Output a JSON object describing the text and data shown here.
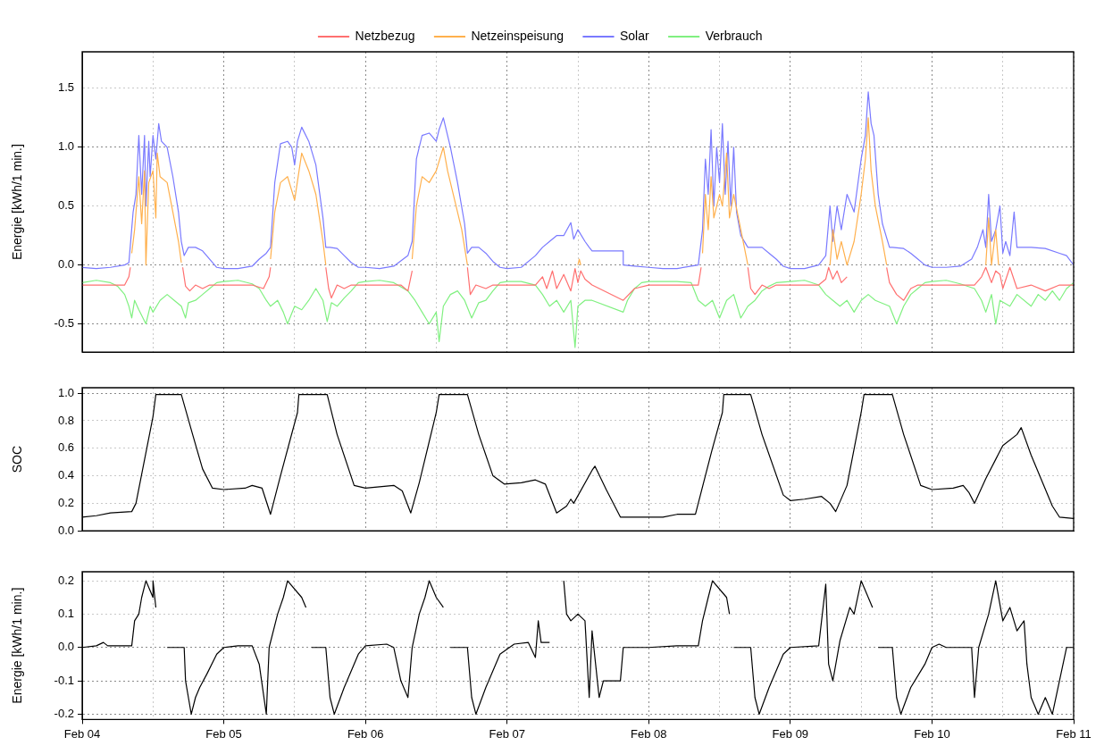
{
  "chart_data": [
    {
      "type": "line",
      "ylabel": "Energie [kWh/1 min.]",
      "legend": "top",
      "grid": true,
      "tick_labels": "y",
      "marker": "none",
      "line_style": "solid",
      "xlim": [
        "--02-04",
        "--02-11"
      ],
      "xticks": [
        "--02-04",
        "--02-04T12:00",
        "--02-05",
        "--02-05T12:00",
        "--02-06",
        "--02-06T12:00",
        "--02-07",
        "--02-07T12:00",
        "--02-08",
        "--02-08T12:00",
        "--02-09",
        "--02-09T12:00",
        "--02-10",
        "--02-10T12:00",
        "--02-11"
      ],
      "ylim": [
        -0.74,
        1.81
      ],
      "yticks": [
        {
          "value": -0.5,
          "label": "-0.5"
        },
        {
          "value": 0,
          "label": "0.0"
        },
        0.5,
        {
          "value": 1,
          "label": "1.0"
        },
        1.5
      ],
      "series": [
        {
          "name": "Netzbezug",
          "color": "#ff7070",
          "x": [
            "--02-04T00:00",
            "--02-04T07:12",
            "--02-04T07:55",
            "--02-04T08:10",
            "--02-04T08:24",
            "--02-04T17:02",
            "--02-04T17:31",
            "--02-04T18:14",
            "--02-04T19:12",
            "--02-04T20:24",
            "--02-04T21:36",
            "--02-05T04:48",
            "--02-05T06:43",
            "--02-05T07:41",
            "--02-05T07:55",
            "--02-05T08:10",
            "--02-05T17:17",
            "--02-05T17:46",
            "--02-05T18:14",
            "--02-05T19:12",
            "--02-05T20:24",
            "--02-05T21:36",
            "--02-06T06:00",
            "--02-06T07:12",
            "--02-06T07:55",
            "--02-06T08:10",
            "--02-06T17:17",
            "--02-06T17:46",
            "--02-06T18:43",
            "--02-06T20:24",
            "--02-06T21:36",
            "--02-07T04:48",
            "--02-07T06:00",
            "--02-07T06:43",
            "--02-07T07:41",
            "--02-07T08:24",
            "--02-07T09:36",
            "--02-07T10:48",
            "--02-07T11:31",
            "--02-07T12:00",
            "--02-07T12:29",
            "--02-07T13:12",
            "--02-07T14:24",
            "--02-07T19:41",
            "--02-07T21:36",
            "--02-08T00:00",
            "--02-08T08:24",
            "--02-08T08:53",
            "--02-08T09:07",
            "--02-08T16:48",
            "--02-08T17:17",
            "--02-08T18:00",
            "--02-08T19:12",
            "--02-08T20:24",
            "--02-08T21:36",
            "--02-09T04:48",
            "--02-09T06:00",
            "--02-09T06:29",
            "--02-09T07:12",
            "--02-09T07:55",
            "--02-09T08:38",
            "--02-09T09:36",
            "--02-09T10:05",
            "--02-09T16:19",
            "--02-09T16:48",
            "--02-09T18:00",
            "--02-09T19:12",
            "--02-09T20:24",
            "--02-09T21:36",
            "--02-10T07:12",
            "--02-10T08:24",
            "--02-10T09:07",
            "--02-10T10:05",
            "--02-10T10:48",
            "--02-10T11:31",
            "--02-10T12:00",
            "--02-10T13:12",
            "--02-10T14:24",
            "--02-10T16:48",
            "--02-10T19:12",
            "--02-10T21:36",
            "--02-11T00:00"
          ],
          "values": [
            -0.17,
            -0.17,
            -0.1,
            -0.02,
            null,
            -0.02,
            -0.18,
            -0.22,
            -0.17,
            -0.2,
            -0.17,
            -0.17,
            -0.2,
            -0.1,
            -0.02,
            null,
            -0.02,
            -0.2,
            -0.28,
            -0.17,
            -0.2,
            -0.17,
            -0.17,
            -0.22,
            -0.05,
            null,
            -0.02,
            -0.25,
            -0.17,
            -0.2,
            -0.17,
            -0.17,
            -0.1,
            -0.2,
            -0.05,
            -0.2,
            -0.08,
            -0.22,
            -0.03,
            -0.15,
            -0.05,
            -0.12,
            -0.17,
            -0.3,
            -0.2,
            -0.17,
            -0.17,
            -0.02,
            null,
            -0.02,
            -0.2,
            -0.25,
            -0.17,
            -0.2,
            -0.17,
            -0.17,
            -0.12,
            -0.02,
            -0.12,
            -0.05,
            -0.15,
            -0.1,
            null,
            -0.02,
            -0.15,
            -0.25,
            -0.3,
            -0.2,
            -0.17,
            -0.17,
            -0.1,
            -0.02,
            -0.15,
            -0.05,
            -0.08,
            -0.2,
            -0.02,
            -0.2,
            -0.17,
            -0.22,
            -0.17,
            -0.17
          ]
        },
        {
          "name": "Netzeinspeisung",
          "color": "#ffb04d",
          "x": [
            "--02-04T08:24",
            "--02-04T08:53",
            "--02-04T09:36",
            "--02-04T10:05",
            "--02-04T10:34",
            "--02-04T10:48",
            "--02-04T11:17",
            "--02-04T12:00",
            "--02-04T12:29",
            "--02-04T12:43",
            "--02-04T13:12",
            "--02-04T14:24",
            "--02-04T15:22",
            "--02-04T16:19",
            "--02-04T16:48",
            "--02-04T17:02",
            "--02-05T07:55",
            "--02-05T08:38",
            "--02-05T09:36",
            "--02-05T10:48",
            "--02-05T12:00",
            "--02-05T13:12",
            "--02-05T14:24",
            "--02-05T15:36",
            "--02-05T16:48",
            "--02-05T17:17",
            "--02-05T17:31",
            "--02-06T07:55",
            "--02-06T08:38",
            "--02-06T09:36",
            "--02-06T10:48",
            "--02-06T12:00",
            "--02-06T13:12",
            "--02-06T13:55",
            "--02-06T14:53",
            "--02-06T16:19",
            "--02-06T17:17",
            "--02-06T17:31",
            "--02-07T12:00",
            "--02-07T12:14",
            "--02-07T12:29",
            "--02-07T12:43",
            "--02-08T09:07",
            "--02-08T09:36",
            "--02-08T10:05",
            "--02-08T10:34",
            "--02-08T11:02",
            "--02-08T12:00",
            "--02-08T12:29",
            "--02-08T13:12",
            "--02-08T13:41",
            "--02-08T14:24",
            "--02-08T15:36",
            "--02-08T16:48",
            "--02-08T17:02",
            "--02-09T06:43",
            "--02-09T07:12",
            "--02-09T07:55",
            "--02-09T08:38",
            "--02-09T09:36",
            "--02-09T10:48",
            "--02-09T12:00",
            "--02-09T12:43",
            "--02-09T13:12",
            "--02-09T13:41",
            "--02-09T14:24",
            "--02-09T15:36",
            "--02-09T16:19",
            "--02-09T16:34",
            "--02-10T09:07",
            "--02-10T09:36",
            "--02-10T10:05",
            "--02-10T10:48",
            "--02-10T11:17"
          ],
          "values": [
            0.1,
            0.3,
            0.75,
            0.35,
            0.8,
            0.0,
            0.7,
            0.8,
            0.4,
            0.95,
            0.75,
            0.7,
            0.45,
            0.2,
            0.02,
            null,
            0.05,
            0.45,
            0.7,
            0.75,
            0.55,
            0.95,
            0.8,
            0.6,
            0.2,
            0.0,
            null,
            0.05,
            0.5,
            0.75,
            0.7,
            0.8,
            1.0,
            0.8,
            0.6,
            0.3,
            0.0,
            null,
            0.0,
            0.05,
            0.0,
            null,
            0.1,
            0.6,
            0.3,
            0.75,
            0.4,
            0.6,
            0.5,
            0.95,
            0.4,
            0.6,
            0.3,
            0.0,
            null,
            0.0,
            0.3,
            0.05,
            0.2,
            0.0,
            0.2,
            0.6,
            0.9,
            1.25,
            0.8,
            0.5,
            0.2,
            0.0,
            null,
            0.0,
            0.4,
            0.0,
            0.3,
            0.0
          ]
        },
        {
          "name": "Solar",
          "color": "#7a7aff",
          "x": [
            "--02-04T00:00",
            "--02-04T02:24",
            "--02-04T04:48",
            "--02-04T07:12",
            "--02-04T07:55",
            "--02-04T08:38",
            "--02-04T09:07",
            "--02-04T09:36",
            "--02-04T10:05",
            "--02-04T10:34",
            "--02-04T10:48",
            "--02-04T11:17",
            "--02-04T11:31",
            "--02-04T12:00",
            "--02-04T12:29",
            "--02-04T12:58",
            "--02-04T13:26",
            "--02-04T14:24",
            "--02-04T15:22",
            "--02-04T16:19",
            "--02-04T16:48",
            "--02-04T17:17",
            "--02-04T18:00",
            "--02-04T19:12",
            "--02-04T20:24",
            "--02-04T21:36",
            "--02-04T22:48",
            "--02-05T00:00",
            "--02-05T02:24",
            "--02-05T04:48",
            "--02-05T06:00",
            "--02-05T07:12",
            "--02-05T07:55",
            "--02-05T08:38",
            "--02-05T09:36",
            "--02-05T10:48",
            "--02-05T11:31",
            "--02-05T12:00",
            "--02-05T12:29",
            "--02-05T13:12",
            "--02-05T14:24",
            "--02-05T15:36",
            "--02-05T16:48",
            "--02-05T17:17",
            "--02-05T18:00",
            "--02-05T19:12",
            "--02-05T20:24",
            "--02-05T21:36",
            "--02-05T22:48",
            "--02-06T00:00",
            "--02-06T02:24",
            "--02-06T04:48",
            "--02-06T07:12",
            "--02-06T07:55",
            "--02-06T08:38",
            "--02-06T09:36",
            "--02-06T10:48",
            "--02-06T12:00",
            "--02-06T12:29",
            "--02-06T13:12",
            "--02-06T13:55",
            "--02-06T14:24",
            "--02-06T15:36",
            "--02-06T16:48",
            "--02-06T17:17",
            "--02-06T18:00",
            "--02-06T19:12",
            "--02-06T20:24",
            "--02-06T21:36",
            "--02-06T22:48",
            "--02-07T00:00",
            "--02-07T02:24",
            "--02-07T04:48",
            "--02-07T06:00",
            "--02-07T07:12",
            "--02-07T08:24",
            "--02-07T09:36",
            "--02-07T10:48",
            "--02-07T11:17",
            "--02-07T12:00",
            "--02-07T13:12",
            "--02-07T13:55",
            "--02-07T14:24",
            "--02-07T16:48",
            "--02-07T19:41",
            "--02-07T19:41",
            "--02-07T21:36",
            "--02-08T00:00",
            "--02-08T02:24",
            "--02-08T04:48",
            "--02-08T07:12",
            "--02-08T08:24",
            "--02-08T09:07",
            "--02-08T09:36",
            "--02-08T10:05",
            "--02-08T10:34",
            "--02-08T11:02",
            "--02-08T11:31",
            "--02-08T12:00",
            "--02-08T12:29",
            "--02-08T12:58",
            "--02-08T13:26",
            "--02-08T13:55",
            "--02-08T14:24",
            "--02-08T14:53",
            "--02-08T15:36",
            "--02-08T16:48",
            "--02-08T17:17",
            "--02-08T19:12",
            "--02-08T20:24",
            "--02-08T21:36",
            "--02-08T22:48",
            "--02-09T00:00",
            "--02-09T02:24",
            "--02-09T04:48",
            "--02-09T06:00",
            "--02-09T06:43",
            "--02-09T07:12",
            "--02-09T07:55",
            "--02-09T08:38",
            "--02-09T09:36",
            "--02-09T10:48",
            "--02-09T12:00",
            "--02-09T12:43",
            "--02-09T13:12",
            "--02-09T13:41",
            "--02-09T14:10",
            "--02-09T14:53",
            "--02-09T15:36",
            "--02-09T16:48",
            "--02-09T17:17",
            "--02-09T19:12",
            "--02-09T20:24",
            "--02-09T21:36",
            "--02-09T22:48",
            "--02-10T00:00",
            "--02-10T02:24",
            "--02-10T04:48",
            "--02-10T06:43",
            "--02-10T07:41",
            "--02-10T08:38",
            "--02-10T09:07",
            "--02-10T09:36",
            "--02-10T10:05",
            "--02-10T10:48",
            "--02-10T11:31",
            "--02-10T12:00",
            "--02-10T12:29",
            "--02-10T13:12",
            "--02-10T13:55",
            "--02-10T14:24",
            "--02-10T16:48",
            "--02-10T19:12",
            "--02-10T21:36",
            "--02-10T22:48",
            "--02-11T00:00"
          ],
          "values": [
            -0.02,
            -0.03,
            -0.02,
            0.0,
            0.02,
            0.45,
            0.6,
            1.1,
            0.6,
            1.1,
            0.5,
            1.05,
            0.75,
            1.1,
            0.9,
            1.2,
            1.05,
            1.0,
            0.75,
            0.45,
            0.2,
            0.08,
            0.15,
            0.15,
            0.12,
            0.05,
            -0.02,
            -0.03,
            -0.03,
            -0.01,
            0.05,
            0.1,
            0.15,
            0.7,
            1.03,
            1.05,
            1.0,
            0.85,
            1.05,
            1.17,
            1.05,
            0.85,
            0.4,
            0.15,
            0.15,
            0.14,
            0.08,
            0.02,
            -0.02,
            -0.02,
            -0.03,
            -0.01,
            0.08,
            0.2,
            0.9,
            1.1,
            1.12,
            1.05,
            1.15,
            1.25,
            1.1,
            1.0,
            0.7,
            0.35,
            0.1,
            0.15,
            0.15,
            0.1,
            0.03,
            -0.02,
            -0.03,
            -0.02,
            0.08,
            0.15,
            0.2,
            0.25,
            0.25,
            0.36,
            0.22,
            0.3,
            0.2,
            0.15,
            0.12,
            0.12,
            0.12,
            0.0,
            -0.01,
            -0.02,
            -0.03,
            -0.03,
            -0.01,
            0.0,
            0.3,
            0.9,
            0.6,
            1.15,
            0.5,
            1.0,
            0.7,
            1.2,
            0.6,
            1.05,
            0.5,
            1.0,
            0.45,
            0.25,
            0.15,
            0.15,
            0.15,
            0.1,
            0.05,
            -0.01,
            -0.03,
            -0.03,
            0.0,
            0.08,
            0.5,
            0.2,
            0.5,
            0.3,
            0.6,
            0.45,
            0.9,
            1.1,
            1.47,
            1.2,
            1.1,
            0.6,
            0.35,
            0.15,
            0.15,
            0.14,
            0.1,
            0.05,
            0.0,
            -0.02,
            -0.02,
            -0.01,
            0.05,
            0.15,
            0.3,
            0.15,
            0.6,
            0.2,
            0.3,
            0.5,
            0.1,
            0.2,
            0.08,
            0.45,
            0.15,
            0.15,
            0.14,
            0.1,
            0.08,
            0.0
          ]
        },
        {
          "name": "Verbrauch",
          "color": "#80f080",
          "x": [
            "--02-04T00:00",
            "--02-04T02:24",
            "--02-04T04:48",
            "--02-04T06:00",
            "--02-04T07:12",
            "--02-04T07:55",
            "--02-04T08:24",
            "--02-04T08:53",
            "--02-04T09:36",
            "--02-04T10:48",
            "--02-04T11:31",
            "--02-04T12:00",
            "--02-04T13:12",
            "--02-04T14:24",
            "--02-04T15:36",
            "--02-04T16:48",
            "--02-04T17:31",
            "--02-04T18:00",
            "--02-04T19:12",
            "--02-04T20:24",
            "--02-04T21:36",
            "--02-04T22:48",
            "--02-05T00:00",
            "--02-05T02:24",
            "--02-05T04:48",
            "--02-05T06:00",
            "--02-05T07:12",
            "--02-05T07:55",
            "--02-05T09:07",
            "--02-05T10:05",
            "--02-05T10:48",
            "--02-05T12:00",
            "--02-05T13:12",
            "--02-05T14:24",
            "--02-05T15:36",
            "--02-05T16:48",
            "--02-05T17:31",
            "--02-05T18:14",
            "--02-05T19:12",
            "--02-05T20:24",
            "--02-05T21:36",
            "--02-05T22:48",
            "--02-06T00:00",
            "--02-06T02:24",
            "--02-06T04:48",
            "--02-06T07:12",
            "--02-06T08:24",
            "--02-06T09:36",
            "--02-06T10:48",
            "--02-06T12:00",
            "--02-06T12:29",
            "--02-06T13:12",
            "--02-06T14:24",
            "--02-06T15:36",
            "--02-06T16:48",
            "--02-06T18:00",
            "--02-06T19:12",
            "--02-06T20:24",
            "--02-06T21:36",
            "--02-06T22:48",
            "--02-07T00:00",
            "--02-07T02:24",
            "--02-07T04:48",
            "--02-07T06:00",
            "--02-07T07:12",
            "--02-07T08:24",
            "--02-07T09:36",
            "--02-07T10:48",
            "--02-07T11:31",
            "--02-07T12:00",
            "--02-07T13:12",
            "--02-07T14:24",
            "--02-07T19:41",
            "--02-07T20:24",
            "--02-07T21:36",
            "--02-07T22:48",
            "--02-08T00:00",
            "--02-08T04:48",
            "--02-08T07:12",
            "--02-08T08:24",
            "--02-08T09:36",
            "--02-08T10:48",
            "--02-08T12:00",
            "--02-08T13:12",
            "--02-08T14:24",
            "--02-08T15:36",
            "--02-08T16:48",
            "--02-08T18:00",
            "--02-08T19:12",
            "--02-08T20:24",
            "--02-08T21:36",
            "--02-09T00:00",
            "--02-09T02:24",
            "--02-09T04:48",
            "--02-09T06:00",
            "--02-09T07:12",
            "--02-09T08:24",
            "--02-09T09:36",
            "--02-09T10:48",
            "--02-09T12:00",
            "--02-09T13:12",
            "--02-09T14:24",
            "--02-09T16:48",
            "--02-09T18:00",
            "--02-09T19:12",
            "--02-09T20:24",
            "--02-09T21:36",
            "--02-09T22:48",
            "--02-10T00:00",
            "--02-10T02:24",
            "--02-10T04:48",
            "--02-10T07:12",
            "--02-10T08:24",
            "--02-10T09:07",
            "--02-10T10:05",
            "--02-10T10:48",
            "--02-10T11:31",
            "--02-10T13:12",
            "--02-10T14:24",
            "--02-10T16:48",
            "--02-10T18:00",
            "--02-10T19:12",
            "--02-10T20:24",
            "--02-10T21:36",
            "--02-10T22:48",
            "--02-11T00:00"
          ],
          "values": [
            -0.15,
            -0.13,
            -0.15,
            -0.18,
            -0.25,
            -0.35,
            -0.45,
            -0.3,
            -0.38,
            -0.5,
            -0.35,
            -0.4,
            -0.3,
            -0.25,
            -0.3,
            -0.35,
            -0.45,
            -0.32,
            -0.3,
            -0.25,
            -0.2,
            -0.15,
            -0.14,
            -0.13,
            -0.16,
            -0.2,
            -0.3,
            -0.35,
            -0.3,
            -0.4,
            -0.5,
            -0.35,
            -0.38,
            -0.3,
            -0.2,
            -0.3,
            -0.48,
            -0.32,
            -0.35,
            -0.28,
            -0.22,
            -0.15,
            -0.14,
            -0.13,
            -0.15,
            -0.22,
            -0.3,
            -0.4,
            -0.5,
            -0.4,
            -0.65,
            -0.35,
            -0.25,
            -0.22,
            -0.3,
            -0.45,
            -0.32,
            -0.3,
            -0.22,
            -0.15,
            -0.14,
            -0.14,
            -0.17,
            -0.25,
            -0.35,
            -0.3,
            -0.4,
            -0.3,
            -0.7,
            -0.35,
            -0.3,
            -0.3,
            -0.4,
            -0.3,
            -0.2,
            -0.15,
            -0.14,
            -0.14,
            -0.15,
            -0.3,
            -0.35,
            -0.3,
            -0.45,
            -0.3,
            -0.25,
            -0.45,
            -0.35,
            -0.3,
            -0.22,
            -0.18,
            -0.15,
            -0.14,
            -0.13,
            -0.17,
            -0.25,
            -0.3,
            -0.35,
            -0.3,
            -0.4,
            -0.3,
            -0.25,
            -0.3,
            -0.35,
            -0.5,
            -0.35,
            -0.25,
            -0.2,
            -0.15,
            -0.14,
            -0.13,
            -0.16,
            -0.2,
            -0.3,
            -0.4,
            -0.25,
            -0.5,
            -0.3,
            -0.35,
            -0.25,
            -0.35,
            -0.25,
            -0.3,
            -0.22,
            -0.3,
            -0.2,
            -0.15
          ]
        }
      ]
    },
    {
      "type": "line",
      "ylabel": "SOC",
      "grid": true,
      "tick_labels": "y",
      "marker": "none",
      "line_style": "solid",
      "xlim": [
        "--02-04",
        "--02-11"
      ],
      "xticks": [
        "--02-04",
        "--02-04T12:00",
        "--02-05",
        "--02-05T12:00",
        "--02-06",
        "--02-06T12:00",
        "--02-07",
        "--02-07T12:00",
        "--02-08",
        "--02-08T12:00",
        "--02-09",
        "--02-09T12:00",
        "--02-10",
        "--02-10T12:00",
        "--02-11"
      ],
      "ylim": [
        0,
        1.04
      ],
      "yticks": [
        {
          "value": 0,
          "label": "0.0"
        },
        0.2,
        0.4,
        0.6,
        0.8,
        {
          "value": 1,
          "label": "1.0"
        }
      ],
      "series": [
        {
          "color": "#000000",
          "x": [
            "--02-04T00:00",
            "--02-04T02:24",
            "--02-04T04:48",
            "--02-04T08:24",
            "--02-04T09:07",
            "--02-04T12:00",
            "--02-04T12:29",
            "--02-04T16:48",
            "--02-04T18:43",
            "--02-04T20:24",
            "--02-04T22:05",
            "--02-05T00:00",
            "--02-05T03:36",
            "--02-05T04:48",
            "--02-05T06:29",
            "--02-05T07:55",
            "--02-05T09:36",
            "--02-05T12:29",
            "--02-05T12:43",
            "--02-05T17:31",
            "--02-05T19:12",
            "--02-05T22:05",
            "--02-06T00:00",
            "--02-06T02:24",
            "--02-06T04:48",
            "--02-06T06:14",
            "--02-06T07:41",
            "--02-06T09:07",
            "--02-06T12:00",
            "--02-06T12:29",
            "--02-06T17:17",
            "--02-06T19:12",
            "--02-06T21:36",
            "--02-06T23:31",
            "--02-07T02:24",
            "--02-07T04:48",
            "--02-07T06:29",
            "--02-07T08:24",
            "--02-07T10:05",
            "--02-07T10:48",
            "--02-07T11:17",
            "--02-07T14:24",
            "--02-07T14:53",
            "--02-07T16:48",
            "--02-07T19:12",
            "--02-08T02:24",
            "--02-08T04:48",
            "--02-08T07:55",
            "--02-08T10:48",
            "--02-08T12:29",
            "--02-08T12:43",
            "--02-08T17:17",
            "--02-08T19:12",
            "--02-08T22:48",
            "--02-09T00:00",
            "--02-09T02:24",
            "--02-09T05:17",
            "--02-09T06:43",
            "--02-09T07:41",
            "--02-09T09:36",
            "--02-09T12:00",
            "--02-09T12:29",
            "--02-09T17:17",
            "--02-09T19:12",
            "--02-09T22:05",
            "--02-10T00:00",
            "--02-10T03:36",
            "--02-10T05:17",
            "--02-10T06:14",
            "--02-10T07:12",
            "--02-10T09:07",
            "--02-10T10:48",
            "--02-10T12:00",
            "--02-10T14:24",
            "--02-10T15:07",
            "--02-10T16:48",
            "--02-10T20:24",
            "--02-10T21:36",
            "--02-11T00:00"
          ],
          "values": [
            0.1,
            0.11,
            0.13,
            0.14,
            0.2,
            0.83,
            0.99,
            0.99,
            0.7,
            0.45,
            0.31,
            0.3,
            0.31,
            0.33,
            0.31,
            0.12,
            0.4,
            0.86,
            0.99,
            0.99,
            0.7,
            0.33,
            0.31,
            0.32,
            0.33,
            0.29,
            0.13,
            0.35,
            0.86,
            0.99,
            0.99,
            0.7,
            0.4,
            0.34,
            0.35,
            0.37,
            0.34,
            0.13,
            0.18,
            0.23,
            0.2,
            0.44,
            0.47,
            0.3,
            0.1,
            0.1,
            0.12,
            0.12,
            0.6,
            0.86,
            0.99,
            0.99,
            0.7,
            0.26,
            0.22,
            0.23,
            0.25,
            0.2,
            0.14,
            0.33,
            0.86,
            0.99,
            0.99,
            0.7,
            0.33,
            0.3,
            0.31,
            0.33,
            0.28,
            0.2,
            0.38,
            0.52,
            0.62,
            0.7,
            0.75,
            0.55,
            0.18,
            0.1,
            0.09
          ]
        }
      ]
    },
    {
      "type": "line",
      "ylabel": "Energie [kWh/1 min.]",
      "grid": true,
      "marker": "none",
      "line_style": "solid",
      "xlim": [
        "--02-04",
        "--02-11"
      ],
      "xticks": [
        {
          "value": "--02-04",
          "label": "Feb 04"
        },
        {
          "value": "--02-04T12:00",
          "label": null
        },
        {
          "value": "--02-05",
          "label": "Feb 05"
        },
        {
          "value": "--02-05T12:00",
          "label": null
        },
        {
          "value": "--02-06",
          "label": "Feb 06"
        },
        {
          "value": "--02-06T12:00",
          "label": null
        },
        {
          "value": "--02-07",
          "label": "Feb 07"
        },
        {
          "value": "--02-07T12:00",
          "label": null
        },
        {
          "value": "--02-08",
          "label": "Feb 08"
        },
        {
          "value": "--02-08T12:00",
          "label": null
        },
        {
          "value": "--02-09",
          "label": "Feb 09"
        },
        {
          "value": "--02-09T12:00",
          "label": null
        },
        {
          "value": "--02-10",
          "label": "Feb 10"
        },
        {
          "value": "--02-10T12:00",
          "label": null
        },
        {
          "value": "--02-11",
          "label": "Feb 11"
        }
      ],
      "ylim": [
        -0.216,
        0.227
      ],
      "yticks": [
        {
          "value": -0.2,
          "label": "-0.2"
        },
        {
          "value": -0.1,
          "label": "-0.1"
        },
        {
          "value": 0,
          "label": "0.0"
        },
        0.1,
        0.2
      ],
      "series": [
        {
          "color": "#000000",
          "x": [
            "--02-04T00:00",
            "--02-04T02:24",
            "--02-04T03:36",
            "--02-04T04:19",
            "--02-04T08:24",
            "--02-04T08:53",
            "--02-04T09:36",
            "--02-04T10:05",
            "--02-04T10:48",
            "--02-04T12:00",
            "--02-04T12:00",
            "--02-04T12:29",
            "--02-04T13:12",
            "--02-04T14:24",
            "--02-04T17:17",
            "--02-04T17:31",
            "--02-04T18:00",
            "--02-04T18:29",
            "--02-04T19:12",
            "--02-04T19:55",
            "--02-04T21:07",
            "--02-04T22:48",
            "--02-05T00:00",
            "--02-05T02:24",
            "--02-05T04:48",
            "--02-05T06:00",
            "--02-05T07:12",
            "--02-05T07:41",
            "--02-05T09:07",
            "--02-05T10:05",
            "--02-05T10:48",
            "--02-05T13:12",
            "--02-05T13:55",
            "--02-05T14:24",
            "--02-05T14:53",
            "--02-05T17:17",
            "--02-05T18:00",
            "--02-05T18:43",
            "--02-05T20:24",
            "--02-05T22:48",
            "--02-06T00:00",
            "--02-06T03:36",
            "--02-06T04:48",
            "--02-06T06:00",
            "--02-06T07:12",
            "--02-06T07:55",
            "--02-06T09:07",
            "--02-06T10:05",
            "--02-06T10:48",
            "--02-06T12:00",
            "--02-06T13:12",
            "--02-06T13:41",
            "--02-06T14:24",
            "--02-06T17:17",
            "--02-06T18:00",
            "--02-06T18:43",
            "--02-06T20:24",
            "--02-06T22:48",
            "--02-07T01:12",
            "--02-07T03:36",
            "--02-07T04:48",
            "--02-07T05:17",
            "--02-07T05:46",
            "--02-07T07:12",
            "--02-07T08:24",
            "--02-07T09:36",
            "--02-07T10:05",
            "--02-07T10:48",
            "--02-07T12:00",
            "--02-07T13:12",
            "--02-07T13:55",
            "--02-07T14:24",
            "--02-07T15:36",
            "--02-07T16:19",
            "--02-07T19:12",
            "--02-07T19:41",
            "--02-08T00:00",
            "--02-08T04:48",
            "--02-08T08:24",
            "--02-08T09:07",
            "--02-08T10:05",
            "--02-08T10:48",
            "--02-08T13:12",
            "--02-08T13:41",
            "--02-08T13:55",
            "--02-08T14:24",
            "--02-08T17:17",
            "--02-08T18:00",
            "--02-08T18:43",
            "--02-08T20:24",
            "--02-08T22:48",
            "--02-09T00:00",
            "--02-09T04:48",
            "--02-09T06:00",
            "--02-09T06:29",
            "--02-09T07:12",
            "--02-09T08:24",
            "--02-09T10:05",
            "--02-09T10:48",
            "--02-09T12:00",
            "--02-09T13:12",
            "--02-09T13:55",
            "--02-09T14:24",
            "--02-09T14:53",
            "--02-09T17:17",
            "--02-09T18:00",
            "--02-09T18:43",
            "--02-09T20:24",
            "--02-09T22:48",
            "--02-10T00:00",
            "--02-10T01:12",
            "--02-10T02:24",
            "--02-10T06:43",
            "--02-10T07:12",
            "--02-10T07:55",
            "--02-10T09:36",
            "--02-10T10:48",
            "--02-10T12:00",
            "--02-10T13:12",
            "--02-10T14:24",
            "--02-10T15:36",
            "--02-10T16:05",
            "--02-10T16:48",
            "--02-10T18:00",
            "--02-10T19:12",
            "--02-10T20:24",
            "--02-10T21:36",
            "--02-10T22:48",
            "--02-11T00:00"
          ],
          "values": [
            0.0,
            0.005,
            0.015,
            0.005,
            0.005,
            0.08,
            0.1,
            0.15,
            0.2,
            0.15,
            0.2,
            0.12,
            null,
            0.0,
            0.0,
            -0.1,
            -0.15,
            -0.2,
            -0.15,
            -0.12,
            -0.08,
            -0.02,
            0.0,
            0.005,
            0.005,
            -0.05,
            -0.2,
            0.0,
            0.1,
            0.15,
            0.2,
            0.15,
            0.12,
            null,
            0.0,
            0.0,
            -0.15,
            -0.2,
            -0.12,
            -0.02,
            0.005,
            0.01,
            0.0,
            -0.1,
            -0.15,
            0.0,
            0.1,
            0.15,
            0.2,
            0.15,
            0.12,
            null,
            0.0,
            0.0,
            -0.15,
            -0.2,
            -0.12,
            -0.02,
            0.01,
            0.015,
            -0.03,
            0.08,
            0.015,
            0.015,
            null,
            0.2,
            0.1,
            0.08,
            0.1,
            0.08,
            -0.15,
            0.05,
            -0.15,
            -0.1,
            -0.1,
            0.0,
            0.0,
            0.005,
            0.005,
            0.08,
            0.15,
            0.2,
            0.15,
            0.1,
            null,
            0.0,
            0.0,
            -0.15,
            -0.2,
            -0.12,
            -0.02,
            0.0,
            0.005,
            0.19,
            -0.05,
            -0.1,
            0.02,
            0.12,
            0.1,
            0.2,
            0.15,
            0.12,
            null,
            0.0,
            0.0,
            -0.15,
            -0.2,
            -0.12,
            -0.05,
            0.0,
            0.01,
            0.0,
            0.0,
            -0.15,
            0.0,
            0.1,
            0.2,
            0.08,
            0.12,
            0.05,
            0.08,
            -0.05,
            -0.15,
            -0.2,
            -0.15,
            -0.2,
            -0.1,
            0.0,
            0.0
          ]
        }
      ]
    }
  ]
}
